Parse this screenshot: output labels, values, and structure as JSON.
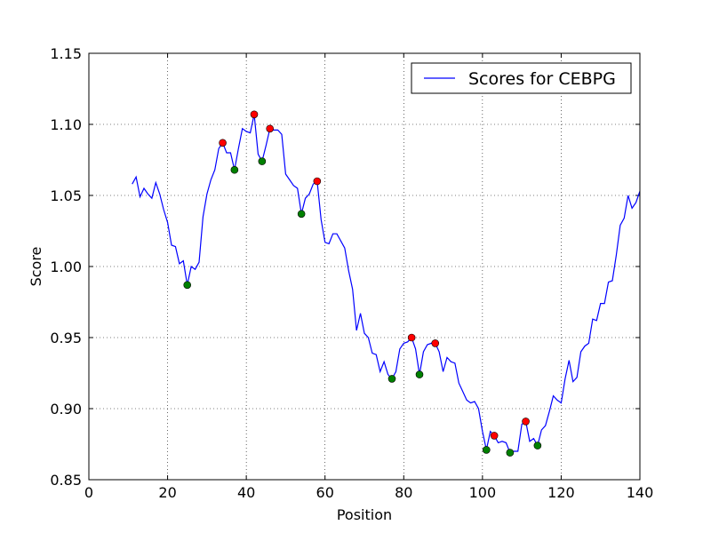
{
  "chart_data": {
    "type": "line",
    "x_label": "Position",
    "y_label": "Score",
    "xlim": [
      0,
      140
    ],
    "ylim": [
      0.85,
      1.15
    ],
    "xticks": [
      0,
      20,
      40,
      60,
      80,
      100,
      120,
      140
    ],
    "yticks": [
      0.85,
      {
        "value": 0.9,
        "label": "0.90"
      },
      0.95,
      {
        "value": 1.0,
        "label": "1.00"
      },
      1.05,
      {
        "value": 1.1,
        "label": "1.10"
      },
      1.15
    ],
    "grid": true,
    "legend": "upper right",
    "series": [
      {
        "name": "Scores for CEBPG",
        "color": "#0000ff",
        "x": [
          11,
          12,
          13,
          14,
          15,
          16,
          17,
          18,
          19,
          20,
          21,
          22,
          23,
          24,
          25,
          26,
          27,
          28,
          29,
          30,
          31,
          32,
          33,
          34,
          35,
          36,
          37,
          38,
          39,
          40,
          41,
          42,
          43,
          44,
          45,
          46,
          47,
          48,
          49,
          50,
          51,
          52,
          53,
          54,
          55,
          56,
          57,
          58,
          59,
          60,
          61,
          62,
          63,
          64,
          65,
          66,
          67,
          68,
          69,
          70,
          71,
          72,
          73,
          74,
          75,
          76,
          77,
          78,
          79,
          80,
          81,
          82,
          83,
          84,
          85,
          86,
          87,
          88,
          89,
          90,
          91,
          92,
          93,
          94,
          95,
          96,
          97,
          98,
          99,
          100,
          101,
          102,
          103,
          104,
          105,
          106,
          107,
          108,
          109,
          110,
          111,
          112,
          113,
          114,
          115,
          116,
          117,
          118,
          119,
          120,
          121,
          122,
          123,
          124,
          125,
          126,
          127,
          128,
          129,
          130,
          131,
          132,
          133,
          134,
          135,
          136,
          137,
          138,
          139,
          140
        ],
        "values": [
          1.058,
          1.063,
          1.049,
          1.055,
          1.051,
          1.048,
          1.059,
          1.051,
          1.04,
          1.031,
          1.015,
          1.014,
          1.002,
          1.004,
          0.987,
          1.0,
          0.998,
          1.003,
          1.035,
          1.051,
          1.061,
          1.068,
          1.083,
          1.087,
          1.08,
          1.08,
          1.068,
          1.083,
          1.097,
          1.095,
          1.094,
          1.107,
          1.079,
          1.074,
          1.085,
          1.097,
          1.096,
          1.096,
          1.093,
          1.065,
          1.061,
          1.057,
          1.055,
          1.037,
          1.048,
          1.051,
          1.058,
          1.06,
          1.033,
          1.017,
          1.016,
          1.023,
          1.023,
          1.018,
          1.013,
          0.997,
          0.984,
          0.955,
          0.967,
          0.953,
          0.95,
          0.939,
          0.938,
          0.926,
          0.933,
          0.924,
          0.921,
          0.926,
          0.942,
          0.946,
          0.947,
          0.95,
          0.942,
          0.924,
          0.94,
          0.945,
          0.946,
          0.946,
          0.94,
          0.926,
          0.936,
          0.933,
          0.932,
          0.918,
          0.912,
          0.906,
          0.904,
          0.905,
          0.9,
          0.884,
          0.871,
          0.884,
          0.881,
          0.876,
          0.877,
          0.876,
          0.869,
          0.87,
          0.87,
          0.889,
          0.891,
          0.877,
          0.879,
          0.874,
          0.885,
          0.888,
          0.898,
          0.909,
          0.906,
          0.904,
          0.921,
          0.934,
          0.919,
          0.922,
          0.94,
          0.944,
          0.946,
          0.963,
          0.962,
          0.974,
          0.974,
          0.989,
          0.99,
          1.008,
          1.029,
          1.034,
          1.05,
          1.041,
          1.045,
          1.053
        ]
      }
    ],
    "markers": [
      {
        "color": "#ff0000",
        "x": [
          34,
          42,
          46,
          58,
          82,
          88,
          103,
          111
        ],
        "values": [
          1.087,
          1.107,
          1.097,
          1.06,
          0.95,
          0.946,
          0.881,
          0.891
        ]
      },
      {
        "color": "#008000",
        "x": [
          25,
          37,
          44,
          54,
          77,
          84,
          101,
          107,
          114
        ],
        "values": [
          0.987,
          1.068,
          1.074,
          1.037,
          0.921,
          0.924,
          0.871,
          0.869,
          0.874
        ]
      }
    ]
  }
}
